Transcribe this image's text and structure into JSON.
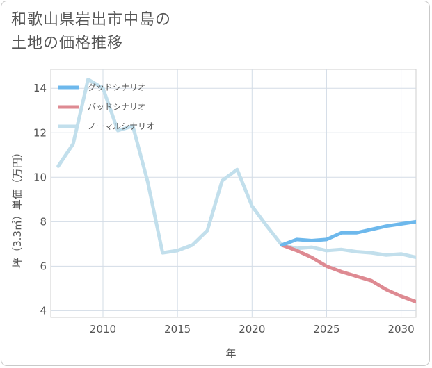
{
  "title_lines": [
    "和歌山県岩出市中島の",
    "土地の価格推移"
  ],
  "chart_data": {
    "type": "line",
    "title": "和歌山県岩出市中島の土地の価格推移",
    "xlabel": "年",
    "ylabel": "坪（3.3㎡）単価（万円）",
    "xlim": [
      2006.5,
      2031
    ],
    "ylim": [
      3.7,
      14.85
    ],
    "xticks": [
      2010,
      2015,
      2020,
      2025,
      2030
    ],
    "yticks": [
      4,
      6,
      8,
      10,
      12,
      14
    ],
    "grid": true,
    "legend_position": "top-left",
    "series": [
      {
        "name": "ノーマルシナリオ",
        "color": "#c2dfec",
        "x": [
          2007,
          2008,
          2009,
          2010,
          2011,
          2012,
          2013,
          2014,
          2015,
          2016,
          2017,
          2018,
          2019,
          2020,
          2021,
          2022,
          2023,
          2024,
          2025,
          2026,
          2027,
          2028,
          2029,
          2030,
          2031
        ],
        "values": [
          10.5,
          11.5,
          14.4,
          14.0,
          12.1,
          12.3,
          9.8,
          6.6,
          6.7,
          6.95,
          7.6,
          9.85,
          10.35,
          8.7,
          7.8,
          6.95,
          6.8,
          6.85,
          6.7,
          6.75,
          6.65,
          6.6,
          6.5,
          6.55,
          6.4
        ]
      },
      {
        "name": "バッドシナリオ",
        "color": "#de8a92",
        "x": [
          2022,
          2023,
          2024,
          2025,
          2026,
          2027,
          2028,
          2029,
          2030,
          2031
        ],
        "values": [
          6.95,
          6.7,
          6.4,
          6.0,
          5.75,
          5.55,
          5.35,
          4.95,
          4.65,
          4.4
        ]
      },
      {
        "name": "グッドシナリオ",
        "color": "#6db8ec",
        "x": [
          2022,
          2023,
          2024,
          2025,
          2026,
          2027,
          2028,
          2029,
          2030,
          2031
        ],
        "values": [
          6.95,
          7.2,
          7.15,
          7.2,
          7.5,
          7.5,
          7.65,
          7.8,
          7.9,
          8.0
        ]
      }
    ],
    "legend": [
      {
        "label": "グッドシナリオ",
        "color": "#6db8ec"
      },
      {
        "label": "バッドシナリオ",
        "color": "#de8a92"
      },
      {
        "label": "ノーマルシナリオ",
        "color": "#c2dfec"
      }
    ]
  }
}
